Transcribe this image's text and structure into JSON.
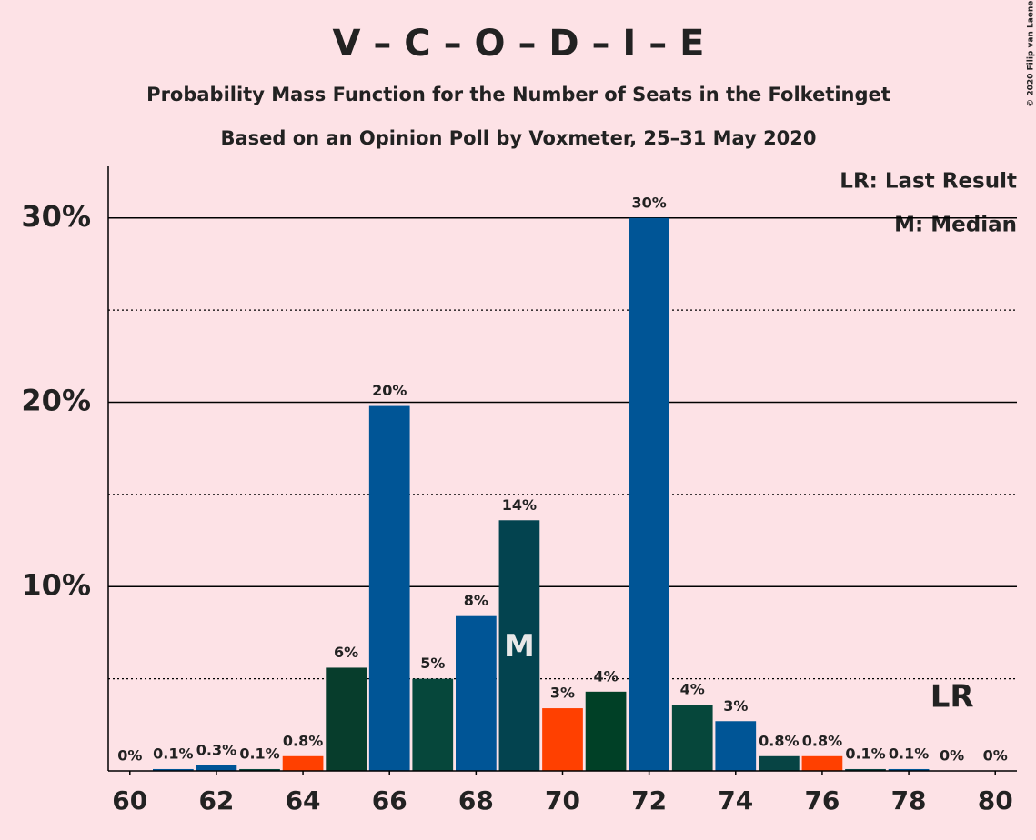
{
  "chart_data": {
    "type": "bar",
    "title": "V – C – O – D – I – E",
    "subtitle": "Probability Mass Function for the Number of Seats in the Folketinget",
    "subtitle2": "Based on an Opinion Poll by Voxmeter, 25–31 May 2020",
    "copyright": "© 2020 Filip van Laenen",
    "legend": [
      "LR: Last Result",
      "M: Median"
    ],
    "x": [
      60,
      61,
      62,
      63,
      64,
      65,
      66,
      67,
      68,
      69,
      70,
      71,
      72,
      73,
      74,
      75,
      76,
      77,
      78,
      79,
      80
    ],
    "values": [
      0,
      0.1,
      0.3,
      0.1,
      0.8,
      5.6,
      19.8,
      5.0,
      8.4,
      13.6,
      3.4,
      4.3,
      30.0,
      3.6,
      2.7,
      0.8,
      0.8,
      0.1,
      0.1,
      0,
      0
    ],
    "value_labels": [
      "0%",
      "0.1%",
      "0.3%",
      "0.1%",
      "0.8%",
      "6%",
      "20%",
      "5%",
      "8%",
      "14%",
      "3%",
      "4%",
      "30%",
      "4%",
      "3%",
      "0.8%",
      "0.8%",
      "0.1%",
      "0.1%",
      "0%",
      "0%"
    ],
    "colors": [
      "#0b3d2e",
      "#005596",
      "#005596",
      "#0a4a3f",
      "#ff4000",
      "#073d2c",
      "#005596",
      "#06473b",
      "#005596",
      "#03434f",
      "#ff4000",
      "#004026",
      "#005596",
      "#06473b",
      "#005596",
      "#074444",
      "#ff4000",
      "#074444",
      "#005596",
      "#005596",
      "#005596"
    ],
    "annotations": [
      {
        "text": "M",
        "x": 69
      },
      {
        "text": "LR",
        "x": 79
      }
    ],
    "xlim": [
      59.5,
      80.5
    ],
    "xticks": [
      60,
      62,
      64,
      66,
      68,
      70,
      72,
      74,
      76,
      78,
      80
    ],
    "ylim": [
      0,
      32.8
    ],
    "yticks": [
      {
        "value": 10,
        "label": "10%"
      },
      {
        "value": 20,
        "label": "20%"
      },
      {
        "value": 30,
        "label": "30%"
      }
    ],
    "minor_yticks": [
      5,
      15,
      25
    ],
    "grid": true
  }
}
